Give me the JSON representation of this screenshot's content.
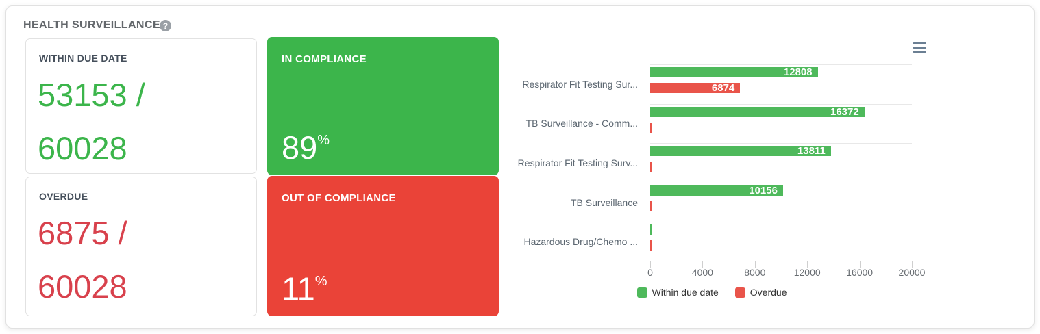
{
  "header": {
    "title": "HEALTH SURVEILLANCE",
    "help_icon": "?"
  },
  "colors": {
    "card_green": "#3cb54b",
    "card_red": "#ea4338",
    "metric_green_text": "#3cb54b",
    "metric_red_text": "#d8414c",
    "bar_green": "#4eb95b",
    "bar_red": "#e9544a"
  },
  "metric_cards": {
    "within_due_date": {
      "label": "WITHIN DUE DATE",
      "line1": "53153 /",
      "line2": "60028"
    },
    "overdue": {
      "label": "OVERDUE",
      "line1": "6875 /",
      "line2": "60028"
    }
  },
  "kpi_cards": {
    "in_compliance": {
      "label": "IN COMPLIANCE",
      "value": "89",
      "unit": "%"
    },
    "out_of_compliance": {
      "label": "OUT OF COMPLIANCE",
      "value": "11",
      "unit": "%"
    }
  },
  "chart_data": {
    "type": "bar",
    "orientation": "horizontal",
    "categories": [
      "Respirator Fit Testing Sur...",
      "TB Surveillance - Comm...",
      "Respirator Fit Testing Surv...",
      "TB Surveillance",
      "Hazardous Drug/Chemo ..."
    ],
    "series": [
      {
        "name": "Within due date",
        "color": "#4eb95b",
        "values": [
          12808,
          16372,
          13811,
          10156,
          0
        ]
      },
      {
        "name": "Overdue",
        "color": "#e9544a",
        "values": [
          6874,
          0,
          0,
          0,
          0
        ]
      }
    ],
    "xlim": [
      0,
      20000
    ],
    "x_ticks": [
      0,
      4000,
      8000,
      12000,
      16000,
      20000
    ],
    "grid": "horizontal category separators",
    "legend_position": "bottom-center",
    "value_labels": "inside-end white bold, hidden for zero values"
  }
}
